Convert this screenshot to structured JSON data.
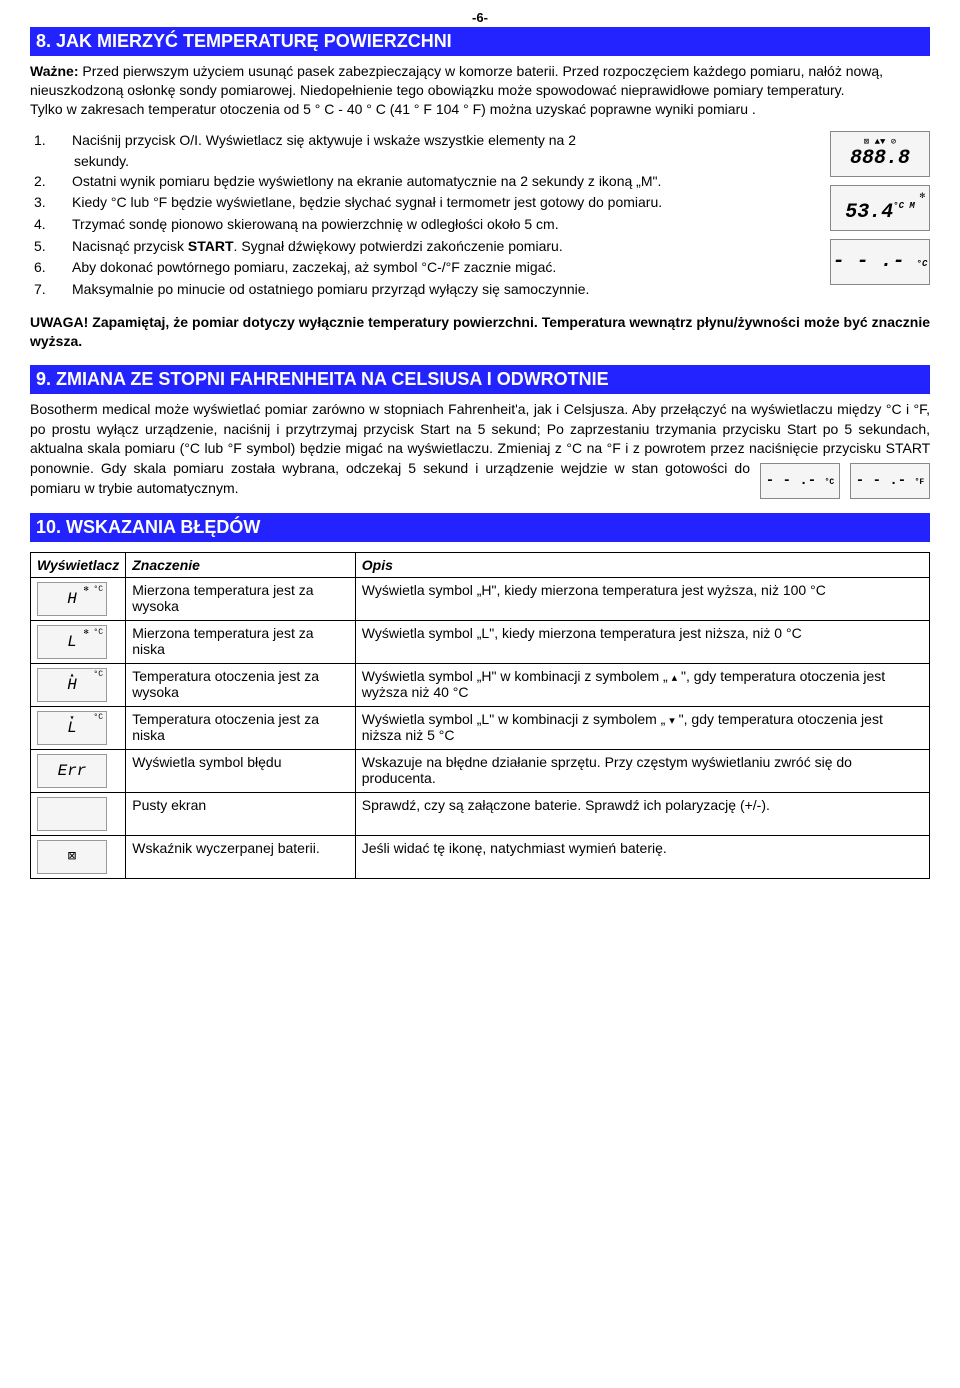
{
  "page_number": "-6-",
  "section8": {
    "header": "8. JAK MIERZYĆ TEMPERATURĘ POWIERZCHNI",
    "intro_bold": "Ważne:",
    "intro_text": " Przed pierwszym użyciem usunąć pasek zabezpieczający w komorze baterii. Przed rozpoczęciem każdego pomiaru, nałóż nową, nieuszkodzoną osłonkę sondy pomiarowej. Niedopełnienie tego obowiązku może spowodować nieprawidłowe pomiary temperatury.",
    "intro_text2": "Tylko w zakresach temperatur otoczenia od 5 ° C - 40 ° C (41 ° F 104 ° F) można uzyskać poprawne wyniki pomiaru .",
    "steps": [
      "Naciśnij przycisk O/I. Wyświetlacz się aktywuje i wskaże wszystkie elementy na 2",
      "sekundy.",
      "Ostatni wynik pomiaru będzie wyświetlony na ekranie automatycznie na 2 sekundy z ikoną „M\".",
      "Kiedy °C lub °F będzie wyświetlane, będzie słychać sygnał i termometr jest gotowy do pomiaru.",
      "Trzymać sondę pionowo skierowaną na powierzchnię w odległości około 5 cm.",
      "Nacisnąć przycisk START. Sygnał dźwiękowy potwierdzi zakończenie pomiaru.",
      "Aby dokonać powtórnego pomiaru, zaczekaj, aż symbol °C-/°F zacznie migać.",
      "Maksymalnie po minucie od ostatniego pomiaru przyrząd wyłączy się samoczynnie."
    ],
    "lcd1_main": "888.8",
    "lcd1_top": "⊠ ▲▼ ⊘",
    "lcd1_side": "°F °C M",
    "lcd2_main": "53.4",
    "lcd2_side": "°C M",
    "lcd2_top": "✻",
    "lcd3_main": "- - .-",
    "lcd3_side": "°C",
    "note_bold1": "UWAGA! Zapamiętaj, że pomiar dotyczy wyłącznie temperatury powierzchni. Temperatura wewnątrz płynu/żywności może być znacznie wyższa."
  },
  "section9": {
    "header": "9. ZMIANA ZE STOPNI FAHRENHEITA NA CELSIUSA I ODWROTNIE",
    "body_p1": "Bosotherm medical może wyświetlać pomiar zarówno w stopniach Fahrenheit'a, jak i Celsjusza. Aby przełączyć na wyświetlaczu między °C i °F, po prostu wyłącz urządzenie, naciśnij i przytrzymaj przycisk Start na 5 sekund; Po zaprzestaniu trzymania przycisku Start po 5 sekundach, aktualna skala pomiaru (°C lub °F symbol) będzie migać na wyświetlaczu. Zmieniaj z °C na °F i z powrotem przez naciśnięcie przycisku ",
    "body_bold": "START",
    "body_p2": " ponownie. Gdy skala pomiaru została wybrana, odczekaj 5 sekund i urządzenie wejdzie w stan gotowości do pomiaru w trybie automatycznym.",
    "lcd_a": "- - .-",
    "lcd_a_unit": "°C",
    "lcd_b": "- - .-",
    "lcd_b_unit": "°F"
  },
  "section10": {
    "header": "10. WSKAZANIA BŁĘDÓW",
    "cols": [
      "Wyświetlacz",
      "Znaczenie",
      "Opis"
    ],
    "rows": [
      {
        "disp": "H",
        "disp_sup": "✻ °C",
        "meaning": "Mierzona temperatura jest za wysoka",
        "desc": "Wyświetla symbol „H\", kiedy mierzona temperatura jest wyższa, niż 100 °C"
      },
      {
        "disp": "L",
        "disp_sup": "✻ °C",
        "meaning": "Mierzona temperatura jest za niska",
        "desc": "Wyświetla symbol „L\", kiedy mierzona temperatura jest niższa, niż 0 °C"
      },
      {
        "disp": "H",
        "disp_sup": "°C",
        "tri": "▴",
        "meaning": "Temperatura otoczenia jest za wysoka",
        "desc_pre": "Wyświetla symbol „H\" w kombinacji z symbolem „ ",
        "desc_tri": "▴",
        "desc_post": " \", gdy temperatura otoczenia jest wyższa niż 40 °C"
      },
      {
        "disp": "L",
        "disp_sup": "°C",
        "tri": "▾",
        "meaning": "Temperatura otoczenia jest za niska",
        "desc_pre": "Wyświetla symbol „L\" w kombinacji z symbolem „ ",
        "desc_tri": "▾",
        "desc_post": " \", gdy temperatura otoczenia jest niższa niż 5 °C"
      },
      {
        "disp": "Err",
        "disp_sup": "",
        "meaning": "Wyświetla symbol błędu",
        "desc": "Wskazuje na błędne działanie sprzętu. Przy częstym wyświetlaniu zwróć się do producenta."
      },
      {
        "disp": "",
        "blank": true,
        "meaning": "Pusty ekran",
        "desc": "Sprawdź, czy są załączone baterie. Sprawdź ich polaryzację (+/-)."
      },
      {
        "disp": "⊠",
        "batt": true,
        "meaning": "Wskaźnik wyczerpanej baterii.",
        "desc": "Jeśli widać tę ikonę,  natychmiast wymień baterię."
      }
    ]
  }
}
